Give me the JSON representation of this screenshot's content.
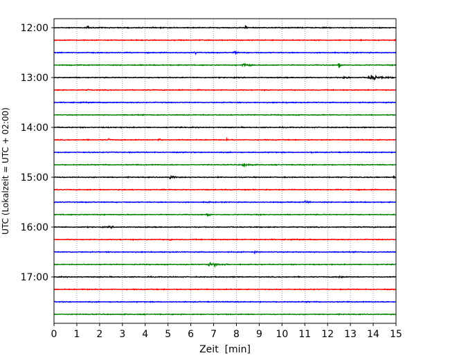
{
  "chart_data": {
    "type": "line",
    "title": "",
    "xlabel": "Zeit  [min]",
    "ylabel": "UTC (Lokalzeit = UTC + 02:00)",
    "xlim": [
      0,
      15
    ],
    "x_ticks": [
      "0",
      "1",
      "2",
      "3",
      "4",
      "5",
      "6",
      "7",
      "8",
      "9",
      "10",
      "11",
      "12",
      "13",
      "14",
      "15"
    ],
    "y_ticks": [
      "12:00",
      "13:00",
      "14:00",
      "15:00",
      "16:00",
      "17:00"
    ],
    "row_interval_minutes": 15,
    "start_time": "12:00",
    "row_count": 24,
    "grid": "vertical dotted lines at each minute",
    "trace_colors": [
      "#000000",
      "#ff0000",
      "#0000ff",
      "#008000"
    ],
    "events": [
      {
        "row_time": "12:00",
        "minute": 1.5,
        "amplitude": 0.6,
        "duration_min": 0.1
      },
      {
        "row_time": "12:00",
        "minute": 8.4,
        "amplitude": 0.7,
        "duration_min": 0.1
      },
      {
        "row_time": "12:15",
        "minute": 15.0,
        "amplitude": 0.3,
        "duration_min": 0.1
      },
      {
        "row_time": "12:30",
        "minute": 6.2,
        "amplitude": 0.5,
        "duration_min": 0.1
      },
      {
        "row_time": "12:30",
        "minute": 7.9,
        "amplitude": 0.3,
        "duration_min": 0.4
      },
      {
        "row_time": "12:45",
        "minute": 8.3,
        "amplitude": 0.5,
        "duration_min": 0.6
      },
      {
        "row_time": "12:45",
        "minute": 12.5,
        "amplitude": 0.7,
        "duration_min": 0.1
      },
      {
        "row_time": "13:00",
        "minute": 12.7,
        "amplitude": 0.3,
        "duration_min": 0.6
      },
      {
        "row_time": "13:00",
        "minute": 13.8,
        "amplitude": 0.55,
        "duration_min": 1.2
      },
      {
        "row_time": "13:15",
        "minute": 1.5,
        "amplitude": 0.2,
        "duration_min": 0.5
      },
      {
        "row_time": "13:15",
        "minute": 6.3,
        "amplitude": 0.15,
        "duration_min": 0.4
      },
      {
        "row_time": "13:30",
        "minute": 10.2,
        "amplitude": 0.2,
        "duration_min": 0.3
      },
      {
        "row_time": "14:00",
        "minute": 11.8,
        "amplitude": 0.15,
        "duration_min": 0.3
      },
      {
        "row_time": "14:15",
        "minute": 2.4,
        "amplitude": 0.35,
        "duration_min": 0.2
      },
      {
        "row_time": "14:15",
        "minute": 4.6,
        "amplitude": 0.5,
        "duration_min": 0.15
      },
      {
        "row_time": "14:15",
        "minute": 7.6,
        "amplitude": 0.3,
        "duration_min": 0.15
      },
      {
        "row_time": "14:30",
        "minute": 11.3,
        "amplitude": 0.2,
        "duration_min": 0.4
      },
      {
        "row_time": "14:45",
        "minute": 8.3,
        "amplitude": 0.45,
        "duration_min": 0.6
      },
      {
        "row_time": "14:45",
        "minute": 10.0,
        "amplitude": 0.15,
        "duration_min": 0.4
      },
      {
        "row_time": "15:00",
        "minute": 5.1,
        "amplitude": 0.45,
        "duration_min": 0.4
      },
      {
        "row_time": "15:00",
        "minute": 14.9,
        "amplitude": 0.3,
        "duration_min": 0.2
      },
      {
        "row_time": "15:30",
        "minute": 6.8,
        "amplitude": 0.5,
        "duration_min": 0.1
      },
      {
        "row_time": "15:30",
        "minute": 11.0,
        "amplitude": 0.3,
        "duration_min": 0.5
      },
      {
        "row_time": "15:45",
        "minute": 6.7,
        "amplitude": 0.3,
        "duration_min": 0.4
      },
      {
        "row_time": "16:00",
        "minute": 2.4,
        "amplitude": 0.25,
        "duration_min": 0.6
      },
      {
        "row_time": "16:15",
        "minute": 5.1,
        "amplitude": 0.45,
        "duration_min": 0.1
      },
      {
        "row_time": "16:30",
        "minute": 8.8,
        "amplitude": 0.2,
        "duration_min": 0.5
      },
      {
        "row_time": "16:45",
        "minute": 6.8,
        "amplitude": 0.6,
        "duration_min": 0.9
      },
      {
        "row_time": "16:45",
        "minute": 8.5,
        "amplitude": 0.2,
        "duration_min": 0.8
      },
      {
        "row_time": "17:00",
        "minute": 12.5,
        "amplitude": 0.3,
        "duration_min": 0.5
      },
      {
        "row_time": "17:15",
        "minute": 6.7,
        "amplitude": 0.15,
        "duration_min": 0.3
      },
      {
        "row_time": "17:30",
        "minute": 11.1,
        "amplitude": 0.2,
        "duration_min": 0.4
      },
      {
        "row_time": "17:45",
        "minute": 1.5,
        "amplitude": 0.15,
        "duration_min": 0.1
      }
    ]
  }
}
